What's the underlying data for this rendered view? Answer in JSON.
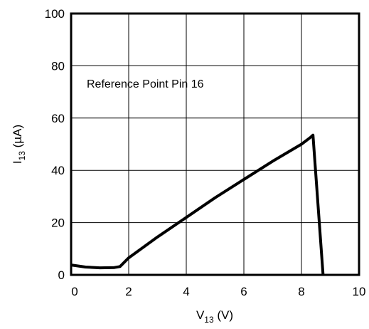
{
  "chart_data": {
    "type": "line",
    "xlabel_main": "V",
    "xlabel_sub": "13",
    "xlabel_unit": " (V)",
    "ylabel_main": "I",
    "ylabel_sub": "13",
    "ylabel_unit": " (µA)",
    "xlim": [
      0,
      10
    ],
    "ylim": [
      0,
      100
    ],
    "xticks": [
      0,
      2,
      4,
      6,
      8,
      10
    ],
    "yticks": [
      0,
      20,
      40,
      60,
      80,
      100
    ],
    "grid": true,
    "annotation": "Reference Point Pin 16",
    "series": [
      {
        "x": [
          0,
          0.5,
          1.0,
          1.5,
          1.7,
          2.0,
          3.0,
          4.0,
          5.0,
          6.0,
          7.0,
          8.0,
          8.3,
          8.4,
          8.75
        ],
        "y": [
          3.8,
          3.0,
          2.7,
          2.8,
          3.2,
          6.5,
          14.5,
          22,
          29.5,
          36.5,
          43.5,
          50,
          52.5,
          53.5,
          0
        ]
      }
    ]
  }
}
